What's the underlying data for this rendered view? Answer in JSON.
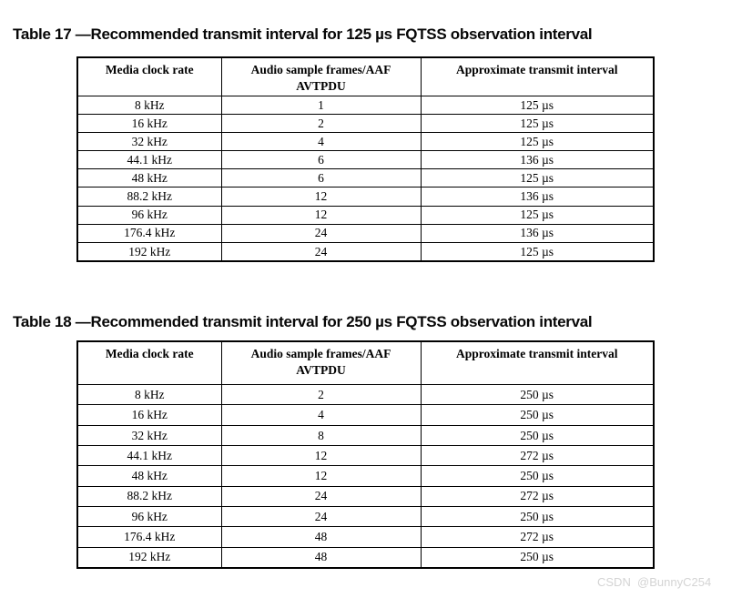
{
  "tables": [
    {
      "title": "Table 17 —Recommended transmit interval for 125 µs FQTSS observation interval",
      "columns": [
        "Media clock rate",
        "Audio sample frames/AAF\nAVTPDU",
        "Approximate transmit interval"
      ],
      "rows": [
        [
          "8 kHz",
          "1",
          "125 µs"
        ],
        [
          "16 kHz",
          "2",
          "125 µs"
        ],
        [
          "32 kHz",
          "4",
          "125 µs"
        ],
        [
          "44.1 kHz",
          "6",
          "136 µs"
        ],
        [
          "48 kHz",
          "6",
          "125 µs"
        ],
        [
          "88.2 kHz",
          "12",
          "136 µs"
        ],
        [
          "96 kHz",
          "12",
          "125 µs"
        ],
        [
          "176.4 kHz",
          "24",
          "136 µs"
        ],
        [
          "192 kHz",
          "24",
          "125 µs"
        ]
      ]
    },
    {
      "title": "Table 18 —Recommended transmit interval for 250 µs FQTSS observation interval",
      "columns": [
        "Media clock rate",
        "Audio sample frames/AAF\nAVTPDU",
        "Approximate transmit interval"
      ],
      "rows": [
        [
          "8 kHz",
          "2",
          "250 µs"
        ],
        [
          "16 kHz",
          "4",
          "250 µs"
        ],
        [
          "32 kHz",
          "8",
          "250 µs"
        ],
        [
          "44.1 kHz",
          "12",
          "272 µs"
        ],
        [
          "48 kHz",
          "12",
          "250 µs"
        ],
        [
          "88.2 kHz",
          "24",
          "272 µs"
        ],
        [
          "96 kHz",
          "24",
          "250 µs"
        ],
        [
          "176.4 kHz",
          "48",
          "272 µs"
        ],
        [
          "192 kHz",
          "48",
          "250 µs"
        ]
      ]
    }
  ],
  "watermark": {
    "text": "CSDN  @BunnyC254"
  },
  "colors": {
    "page_background": "#ffffff",
    "text": "#000000",
    "table_border": "#000000",
    "watermark": "#d4d4d4"
  }
}
